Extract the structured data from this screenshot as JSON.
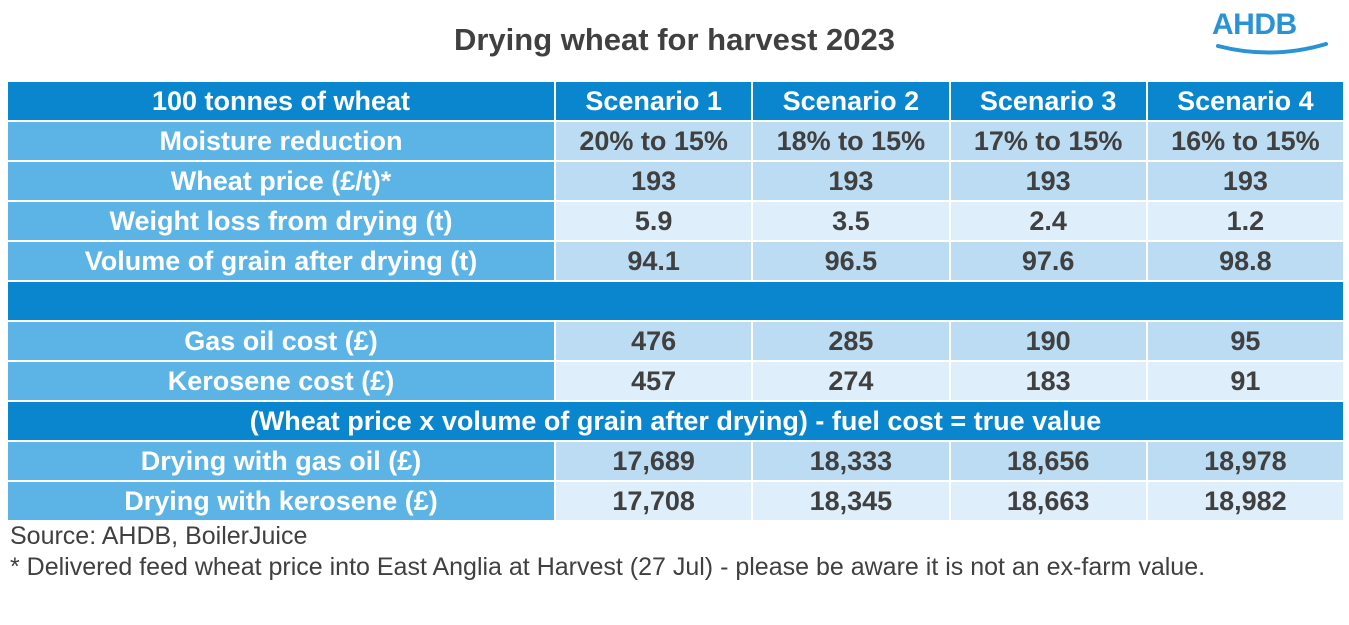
{
  "title": "Drying wheat for harvest 2023",
  "logo_text": "AHDB",
  "colors": {
    "header_blue": "#0a86cf",
    "label_blue": "#5bb4e5",
    "row_dark": "#bcdcf3",
    "row_light": "#deeefa"
  },
  "table": {
    "header": [
      "100 tonnes of wheat",
      "Scenario 1",
      "Scenario 2",
      "Scenario 3",
      "Scenario 4"
    ],
    "rows_a": [
      {
        "label": "Moisture reduction",
        "values": [
          "20% to 15%",
          "18% to 15%",
          "17% to 15%",
          "16% to 15%"
        ]
      },
      {
        "label": "Wheat price (£/t)*",
        "values": [
          "193",
          "193",
          "193",
          "193"
        ]
      },
      {
        "label": "Weight loss from drying (t)",
        "values": [
          "5.9",
          "3.5",
          "2.4",
          "1.2"
        ]
      },
      {
        "label": "Volume of grain after drying (t)",
        "values": [
          "94.1",
          "96.5",
          "97.6",
          "98.8"
        ]
      }
    ],
    "rows_b": [
      {
        "label": "Gas oil cost (£)",
        "values": [
          "476",
          "285",
          "190",
          "95"
        ]
      },
      {
        "label": "Kerosene cost (£)",
        "values": [
          "457",
          "274",
          "183",
          "91"
        ]
      }
    ],
    "band_text": "(Wheat price x volume of grain after drying) - fuel cost = true value",
    "rows_c": [
      {
        "label": "Drying with gas oil (£)",
        "values": [
          "17,689",
          "18,333",
          "18,656",
          "18,978"
        ]
      },
      {
        "label": "Drying with kerosene (£)",
        "values": [
          "17,708",
          "18,345",
          "18,663",
          "18,982"
        ]
      }
    ]
  },
  "source": "Source: AHDB, BoilerJuice",
  "footnote": "* Delivered feed wheat price into East Anglia at Harvest (27 Jul) - please be aware it is not an ex-farm value."
}
